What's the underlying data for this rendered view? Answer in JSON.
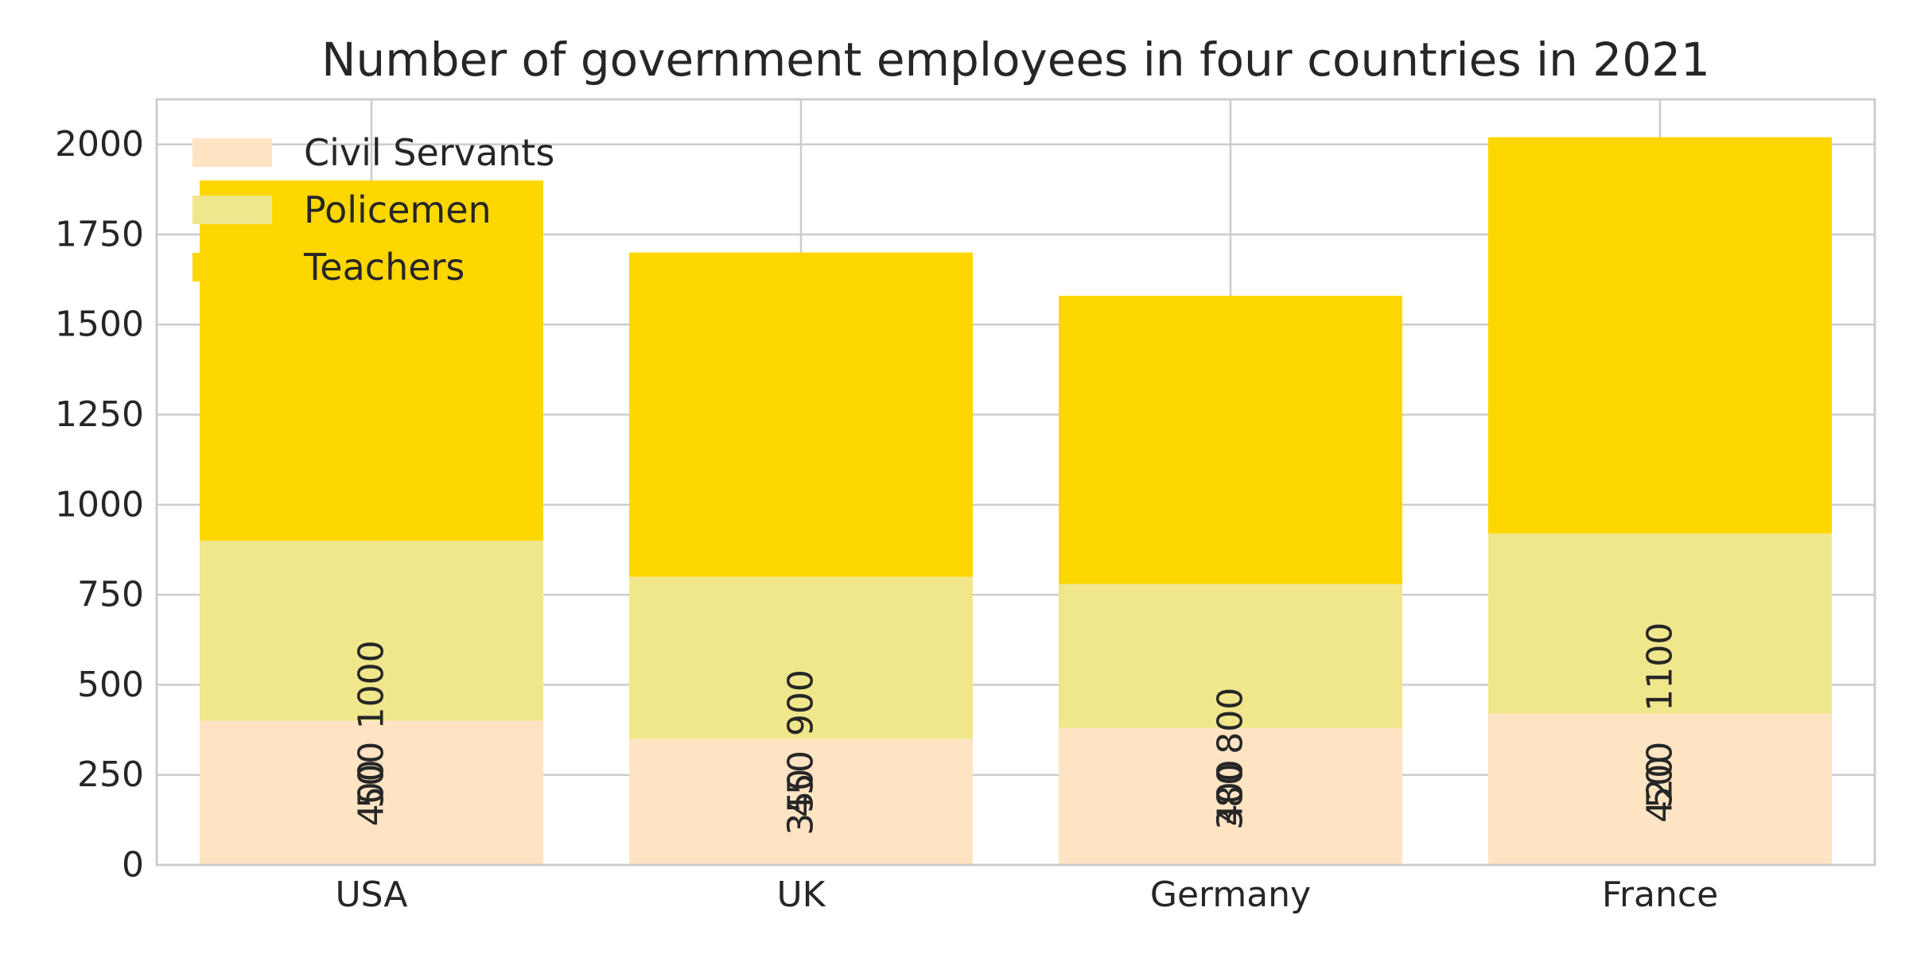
{
  "chart_data": {
    "type": "bar",
    "stacked": true,
    "title": "Number of government employees in four countries in 2021",
    "xlabel": "",
    "ylabel": "",
    "categories": [
      "USA",
      "UK",
      "Germany",
      "France"
    ],
    "series": [
      {
        "name": "Civil Servants",
        "color": "#ffe4c4",
        "values": [
          400,
          350,
          380,
          420
        ]
      },
      {
        "name": "Policemen",
        "color": "#f0e68c",
        "values": [
          500,
          450,
          400,
          500
        ]
      },
      {
        "name": "Teachers",
        "color": "#ffd700",
        "values": [
          1000,
          900,
          800,
          1100
        ]
      }
    ],
    "ylim": [
      0,
      2125
    ],
    "yticks": [
      0,
      250,
      500,
      750,
      1000,
      1250,
      1500,
      1750,
      2000
    ],
    "grid": true,
    "legend_position": "top-left",
    "data_labels": "rotated-vertical"
  }
}
